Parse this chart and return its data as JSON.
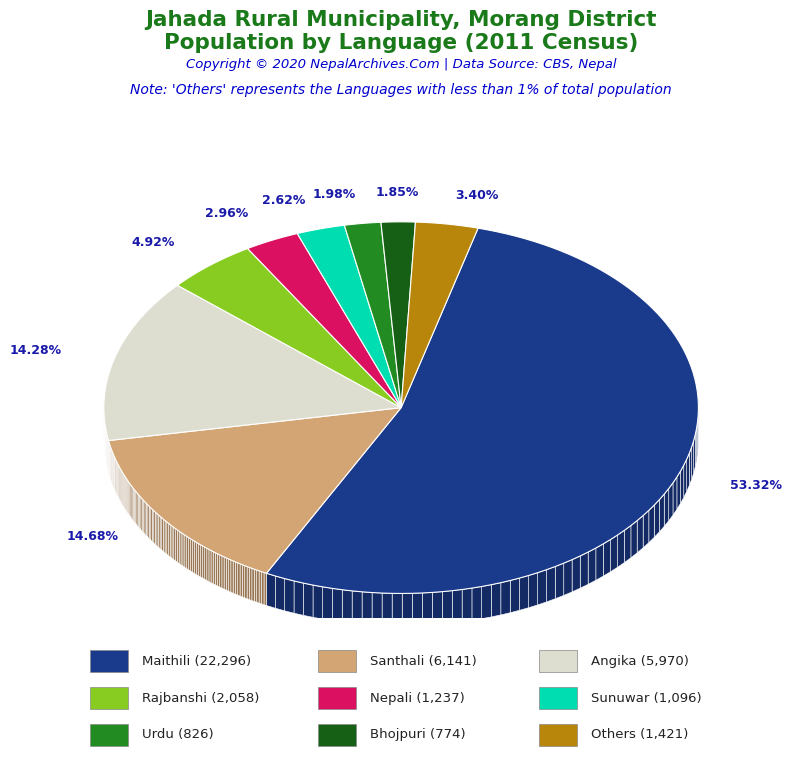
{
  "title_line1": "Jahada Rural Municipality, Morang District",
  "title_line2": "Population by Language (2011 Census)",
  "copyright": "Copyright © 2020 NepalArchives.Com | Data Source: CBS, Nepal",
  "note": "Note: 'Others' represents the Languages with less than 1% of total population",
  "title_color": "#1a7a1a",
  "copyright_color": "#0000cd",
  "note_color": "#0000cd",
  "labels": [
    "Maithili",
    "Santhali",
    "Angika",
    "Rajbanshi",
    "Nepali",
    "Sunuwar",
    "Urdu",
    "Bhojpuri",
    "Others"
  ],
  "values": [
    22296,
    6141,
    5970,
    2058,
    1237,
    1096,
    826,
    774,
    1421
  ],
  "percentages": [
    "53.32%",
    "14.68%",
    "14.28%",
    "4.92%",
    "2.96%",
    "2.62%",
    "1.98%",
    "1.85%",
    "3.40%"
  ],
  "colors": [
    "#1a3a8c",
    "#d4a574",
    "#deded0",
    "#88cc22",
    "#dc1060",
    "#00ddb0",
    "#228B22",
    "#166016",
    "#b8860b"
  ],
  "legend_labels_col1": [
    "Maithili (22,296)",
    "Rajbanshi (2,058)",
    "Urdu (826)"
  ],
  "legend_labels_col2": [
    "Santhali (6,141)",
    "Nepali (1,237)",
    "Bhojpuri (774)"
  ],
  "legend_labels_col3": [
    "Angika (5,970)",
    "Sunuwar (1,096)",
    "Others (1,421)"
  ],
  "legend_colors_col1": [
    "#1a3a8c",
    "#88cc22",
    "#228B22"
  ],
  "legend_colors_col2": [
    "#d4a574",
    "#dc1060",
    "#166016"
  ],
  "legend_colors_col3": [
    "#deded0",
    "#00ddb0",
    "#b8860b"
  ],
  "pct_label_color": "#1a1aaa",
  "background_color": "#ffffff"
}
